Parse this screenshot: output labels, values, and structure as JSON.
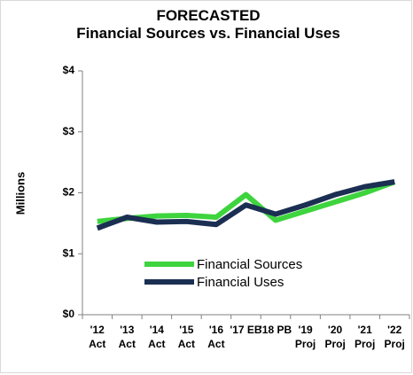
{
  "chart_data": {
    "type": "line",
    "title": "FORECASTED",
    "subtitle": "Financial Sources vs. Financial Uses",
    "y_label": "Millions",
    "categories": [
      "'12 Act",
      "'13 Act",
      "'14 Act",
      "'15 Act",
      "'16 Act",
      "'17 EB",
      "'18 PB",
      "'19 Proj",
      "'20 Proj",
      "'21 Proj",
      "'22 Proj"
    ],
    "series": [
      {
        "name": "Financial Sources",
        "color": "#3ed43e",
        "values": [
          1.53,
          1.58,
          1.62,
          1.63,
          1.6,
          1.97,
          1.55,
          1.7,
          1.85,
          2.0,
          2.18
        ]
      },
      {
        "name": "Financial Uses",
        "color": "#1b2f52",
        "values": [
          1.42,
          1.6,
          1.52,
          1.53,
          1.48,
          1.8,
          1.65,
          1.8,
          1.97,
          2.1,
          2.18
        ]
      }
    ],
    "ylim": [
      0,
      4
    ],
    "yticks": [
      {
        "value": 0,
        "label": "$0"
      },
      {
        "value": 1,
        "label": "$1"
      },
      {
        "value": 2,
        "label": "$2"
      },
      {
        "value": 3,
        "label": "$3"
      },
      {
        "value": 4,
        "label": "$4"
      }
    ],
    "grid": false,
    "legend": "bottom"
  }
}
